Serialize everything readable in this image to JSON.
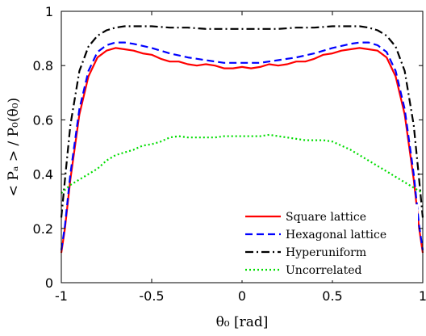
{
  "chart_data": {
    "type": "line",
    "xlabel": "θ₀ [rad]",
    "ylabel": "< Pₐ > / P₀(θ₀)",
    "xlim": [
      -1,
      1
    ],
    "ylim": [
      0,
      1
    ],
    "xticks": [
      -1,
      -0.5,
      0,
      0.5,
      1
    ],
    "xtick_labels": [
      "-1",
      "-0.5",
      "0",
      "0.5",
      "1"
    ],
    "yticks": [
      0,
      0.2,
      0.4,
      0.6,
      0.8,
      1
    ],
    "ytick_labels": [
      "0",
      "0.2",
      "0.4",
      "0.6",
      "0.8",
      "1"
    ],
    "grid": false,
    "legend_position": "bottom-right",
    "series": [
      {
        "name": "Square lattice",
        "color": "#ff0000",
        "style": "solid",
        "x": [
          -1.0,
          -0.98,
          -0.95,
          -0.9,
          -0.85,
          -0.8,
          -0.75,
          -0.7,
          -0.65,
          -0.6,
          -0.55,
          -0.5,
          -0.45,
          -0.4,
          -0.35,
          -0.3,
          -0.25,
          -0.2,
          -0.15,
          -0.1,
          -0.05,
          0.0,
          0.05,
          0.1,
          0.15,
          0.2,
          0.25,
          0.3,
          0.35,
          0.4,
          0.45,
          0.5,
          0.55,
          0.6,
          0.65,
          0.7,
          0.75,
          0.8,
          0.85,
          0.9,
          0.95,
          0.98,
          1.0
        ],
        "y": [
          0.11,
          0.2,
          0.38,
          0.62,
          0.76,
          0.83,
          0.855,
          0.865,
          0.86,
          0.855,
          0.845,
          0.84,
          0.825,
          0.815,
          0.815,
          0.805,
          0.8,
          0.805,
          0.8,
          0.79,
          0.79,
          0.795,
          0.79,
          0.795,
          0.805,
          0.8,
          0.805,
          0.815,
          0.815,
          0.825,
          0.84,
          0.845,
          0.855,
          0.86,
          0.865,
          0.86,
          0.855,
          0.83,
          0.76,
          0.62,
          0.38,
          0.2,
          0.11
        ]
      },
      {
        "name": "Hexagonal lattice",
        "color": "#0000ff",
        "style": "dashed",
        "x": [
          -1.0,
          -0.98,
          -0.95,
          -0.9,
          -0.85,
          -0.8,
          -0.75,
          -0.7,
          -0.65,
          -0.6,
          -0.5,
          -0.4,
          -0.3,
          -0.2,
          -0.1,
          0.0,
          0.1,
          0.2,
          0.3,
          0.4,
          0.5,
          0.6,
          0.65,
          0.7,
          0.75,
          0.8,
          0.85,
          0.9,
          0.95,
          0.98,
          1.0
        ],
        "y": [
          0.12,
          0.21,
          0.4,
          0.64,
          0.78,
          0.85,
          0.875,
          0.885,
          0.885,
          0.88,
          0.865,
          0.845,
          0.83,
          0.82,
          0.81,
          0.81,
          0.81,
          0.82,
          0.83,
          0.845,
          0.865,
          0.88,
          0.885,
          0.885,
          0.875,
          0.85,
          0.78,
          0.64,
          0.4,
          0.21,
          0.12
        ]
      },
      {
        "name": "Hyperuniform",
        "color": "#000000",
        "style": "dashdot",
        "x": [
          -1.0,
          -0.98,
          -0.95,
          -0.9,
          -0.85,
          -0.8,
          -0.75,
          -0.7,
          -0.65,
          -0.6,
          -0.5,
          -0.4,
          -0.3,
          -0.2,
          -0.1,
          0.0,
          0.1,
          0.2,
          0.3,
          0.4,
          0.5,
          0.6,
          0.65,
          0.7,
          0.75,
          0.8,
          0.85,
          0.9,
          0.95,
          0.98,
          1.0
        ],
        "y": [
          0.24,
          0.38,
          0.58,
          0.78,
          0.87,
          0.91,
          0.93,
          0.94,
          0.945,
          0.945,
          0.945,
          0.94,
          0.94,
          0.935,
          0.935,
          0.935,
          0.935,
          0.935,
          0.94,
          0.94,
          0.945,
          0.945,
          0.945,
          0.94,
          0.93,
          0.91,
          0.87,
          0.78,
          0.58,
          0.38,
          0.24
        ]
      },
      {
        "name": "Uncorrelated",
        "color": "#00dd00",
        "style": "dotted",
        "x": [
          -1.0,
          -0.95,
          -0.9,
          -0.85,
          -0.8,
          -0.75,
          -0.7,
          -0.65,
          -0.6,
          -0.55,
          -0.5,
          -0.45,
          -0.4,
          -0.35,
          -0.3,
          -0.25,
          -0.2,
          -0.15,
          -0.1,
          -0.05,
          0.0,
          0.05,
          0.1,
          0.15,
          0.2,
          0.25,
          0.3,
          0.35,
          0.4,
          0.45,
          0.5,
          0.55,
          0.6,
          0.65,
          0.7,
          0.75,
          0.8,
          0.85,
          0.9,
          0.95,
          1.0
        ],
        "y": [
          0.33,
          0.36,
          0.38,
          0.4,
          0.42,
          0.45,
          0.47,
          0.48,
          0.49,
          0.505,
          0.51,
          0.52,
          0.535,
          0.54,
          0.535,
          0.535,
          0.535,
          0.535,
          0.54,
          0.54,
          0.54,
          0.54,
          0.54,
          0.545,
          0.54,
          0.535,
          0.53,
          0.525,
          0.525,
          0.525,
          0.52,
          0.505,
          0.49,
          0.47,
          0.45,
          0.43,
          0.41,
          0.39,
          0.37,
          0.35,
          0.33
        ]
      }
    ]
  }
}
